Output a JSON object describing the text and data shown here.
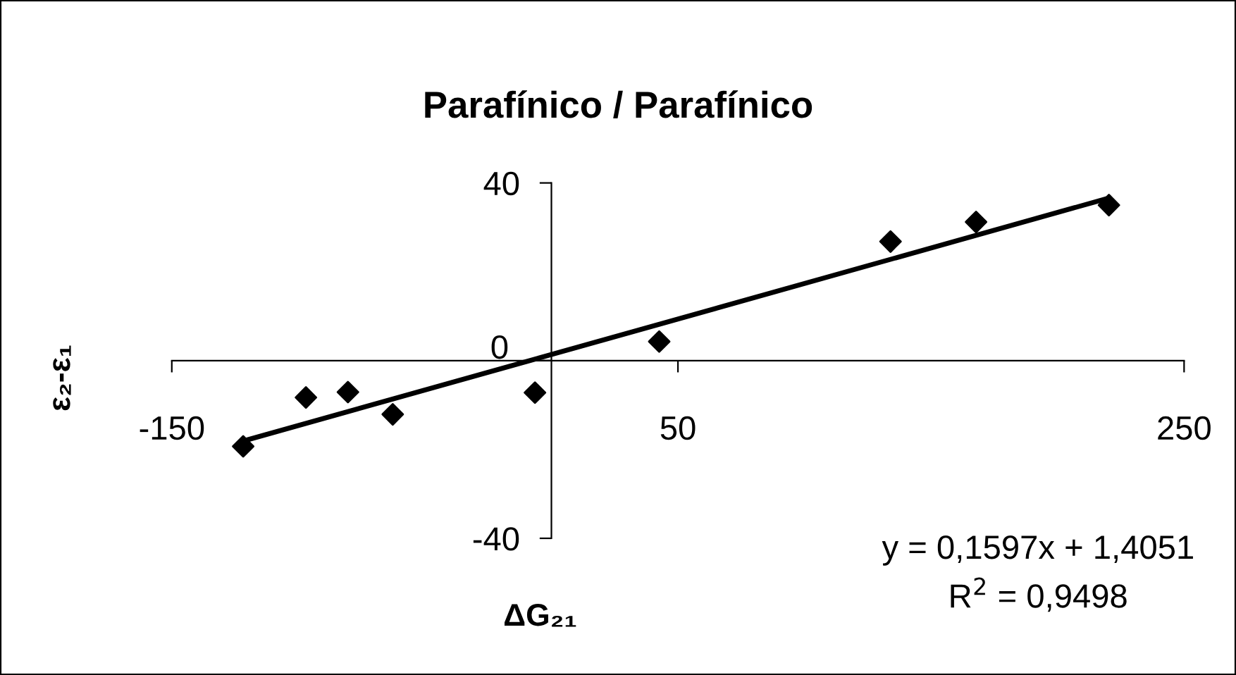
{
  "chart_data": {
    "type": "scatter",
    "title": "Parafínico / Parafínico",
    "xlabel": "ΔG₂₁",
    "ylabel": "ε₂-ε₁",
    "series": [
      {
        "color": "#000000",
        "marker": "diamond",
        "x": [
          -121.8,
          -97,
          -80.4,
          -62.7,
          -6.5,
          42.6,
          134,
          167.8,
          220.3
        ],
        "values": [
          -19.3,
          -8.3,
          -7.1,
          -12.1,
          -7.2,
          4.3,
          26.8,
          31.2,
          35.0
        ]
      },
      {
        "type": "line",
        "color": "#000000",
        "marker": "none",
        "line_style": "solid",
        "x": [
          -121.8,
          220.3
        ],
        "values": [
          -18.1,
          36.6
        ]
      }
    ],
    "xlim": [
      -150,
      250
    ],
    "ylim": [
      -40,
      40
    ],
    "xticks": [
      -150,
      50,
      250
    ],
    "yticks": [
      -40,
      0,
      40
    ],
    "grid": false,
    "legend": false,
    "annotations": [
      "y = 0,1597x + 1,4051",
      "R$^{2}$ = 0,9498"
    ]
  }
}
